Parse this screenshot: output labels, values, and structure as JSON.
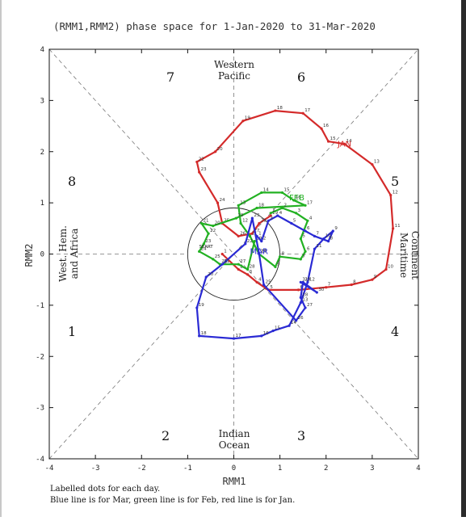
{
  "chart_data": {
    "type": "line",
    "title": "(RMM1,RMM2) phase space for  1-Jan-2020 to 31-Mar-2020",
    "xlabel": "RMM1",
    "ylabel": "RMM2",
    "xlim": [
      -4,
      4
    ],
    "ylim": [
      -4,
      4
    ],
    "xticks": [
      "-4",
      "-3",
      "-2",
      "-1",
      "0",
      "1",
      "2",
      "3",
      "4"
    ],
    "yticks": [
      "-4",
      "-3",
      "-2",
      "-1",
      "0",
      "1",
      "2",
      "3",
      "4"
    ],
    "regions": {
      "top_1": "Western",
      "top_2": "Pacific",
      "bottom_1": "Indian",
      "bottom_2": "Ocean",
      "left_1": "West. Hem.",
      "left_2": "and Africa",
      "right_1": "Maritime",
      "right_2": "Continent"
    },
    "phases": [
      "1",
      "2",
      "3",
      "4",
      "5",
      "6",
      "7",
      "8"
    ],
    "start_label": "START",
    "footer_1": "Labelled dots for each day.",
    "footer_2": "Blue line is for Mar, green line is for Feb, red line is for Jan.",
    "series": [
      {
        "name": "JAN",
        "color": "#d42a2a",
        "label_at": [
          2.25,
          2.1
        ],
        "points": [
          [
            -0.25,
            0.0,
            "1"
          ],
          [
            0.1,
            -0.3,
            "2"
          ],
          [
            0.3,
            -0.4,
            "3"
          ],
          [
            0.5,
            -0.55,
            "4"
          ],
          [
            0.75,
            -0.7,
            "5"
          ],
          [
            1.4,
            -0.7,
            "6"
          ],
          [
            2.0,
            -0.65,
            "7"
          ],
          [
            2.55,
            -0.6,
            "8"
          ],
          [
            3.0,
            -0.5,
            "9"
          ],
          [
            3.3,
            -0.3,
            "10"
          ],
          [
            3.45,
            0.5,
            "11"
          ],
          [
            3.4,
            1.15,
            "12"
          ],
          [
            3.0,
            1.75,
            "13"
          ],
          [
            2.4,
            2.15,
            "14"
          ],
          [
            2.05,
            2.2,
            "15"
          ],
          [
            1.9,
            2.45,
            "16"
          ],
          [
            1.5,
            2.75,
            "17"
          ],
          [
            0.9,
            2.8,
            "18"
          ],
          [
            0.2,
            2.6,
            "19"
          ],
          [
            -0.4,
            2.0,
            "20"
          ],
          [
            -0.8,
            1.8,
            "22"
          ],
          [
            -0.75,
            1.6,
            "23"
          ],
          [
            -0.35,
            1.0,
            "24"
          ],
          [
            -0.25,
            0.6,
            "25"
          ],
          [
            0.1,
            0.35,
            "26"
          ],
          [
            0.4,
            0.4,
            "27"
          ],
          [
            0.55,
            0.6,
            "28"
          ],
          [
            0.8,
            0.75,
            "29"
          ]
        ]
      },
      {
        "name": "FEB",
        "color": "#22b122",
        "label_at": [
          1.2,
          1.05
        ],
        "points": [
          [
            0.8,
            0.8,
            "1"
          ],
          [
            1.05,
            0.9,
            "2"
          ],
          [
            1.35,
            0.8,
            "3"
          ],
          [
            1.6,
            0.65,
            "4"
          ],
          [
            1.45,
            0.3,
            "5"
          ],
          [
            1.55,
            0.05,
            "6"
          ],
          [
            1.45,
            -0.1,
            "7"
          ],
          [
            1.0,
            -0.05,
            "8"
          ],
          [
            0.9,
            -0.25,
            "9"
          ],
          [
            0.55,
            0.0,
            "10"
          ],
          [
            0.35,
            0.35,
            "11"
          ],
          [
            0.15,
            0.6,
            "12"
          ],
          [
            0.1,
            0.95,
            "13"
          ],
          [
            0.6,
            1.2,
            "14"
          ],
          [
            1.05,
            1.2,
            "15"
          ],
          [
            1.3,
            1.05,
            "16"
          ],
          [
            1.55,
            0.95,
            "17"
          ],
          [
            0.5,
            0.9,
            "18"
          ],
          [
            0.05,
            0.7,
            "19"
          ],
          [
            -0.45,
            0.55,
            "20"
          ],
          [
            -0.7,
            0.6,
            "21"
          ],
          [
            -0.55,
            0.4,
            "22"
          ],
          [
            -0.65,
            0.2,
            "23"
          ],
          [
            -0.75,
            0.05,
            "24"
          ],
          [
            -0.45,
            -0.1,
            "25"
          ],
          [
            -0.3,
            -0.2,
            "26"
          ],
          [
            0.1,
            -0.2,
            "27"
          ],
          [
            0.3,
            -0.3,
            "28"
          ],
          [
            0.45,
            0.25,
            "29"
          ]
        ]
      },
      {
        "name": "MAR",
        "color": "#2a2ad4",
        "label_at": [
          0.35,
          0.0
        ],
        "points": [
          [
            0.5,
            0.35,
            "1"
          ],
          [
            0.6,
            0.25,
            "2"
          ],
          [
            0.75,
            0.65,
            "3"
          ],
          [
            0.95,
            0.75,
            "4"
          ],
          [
            1.25,
            0.6,
            "5"
          ],
          [
            1.55,
            0.45,
            "6"
          ],
          [
            1.75,
            0.35,
            "7"
          ],
          [
            2.05,
            0.25,
            "8"
          ],
          [
            2.15,
            0.45,
            "9"
          ],
          [
            1.95,
            0.3,
            "10"
          ],
          [
            1.75,
            0.1,
            "11"
          ],
          [
            1.6,
            -0.55,
            "12"
          ],
          [
            1.45,
            -0.95,
            "13"
          ],
          [
            1.2,
            -1.4,
            "14"
          ],
          [
            0.85,
            -1.5,
            "15"
          ],
          [
            0.6,
            -1.6,
            "16"
          ],
          [
            0.0,
            -1.65,
            "17"
          ],
          [
            -0.75,
            -1.6,
            "18"
          ],
          [
            -0.8,
            -1.05,
            "19"
          ],
          [
            -0.6,
            -0.45,
            "20"
          ],
          [
            -0.25,
            -0.2,
            "21"
          ],
          [
            0.25,
            0.2,
            "22"
          ],
          [
            0.4,
            0.7,
            "23"
          ],
          [
            0.55,
            0.0,
            "24"
          ],
          [
            0.65,
            -0.6,
            "25"
          ],
          [
            1.35,
            -1.3,
            "26"
          ],
          [
            1.55,
            -1.05,
            "27"
          ],
          [
            1.45,
            -0.85,
            "28"
          ],
          [
            1.5,
            -0.55,
            "29"
          ],
          [
            1.8,
            -0.75,
            "30"
          ],
          [
            1.45,
            -0.55,
            "31"
          ]
        ]
      }
    ]
  }
}
